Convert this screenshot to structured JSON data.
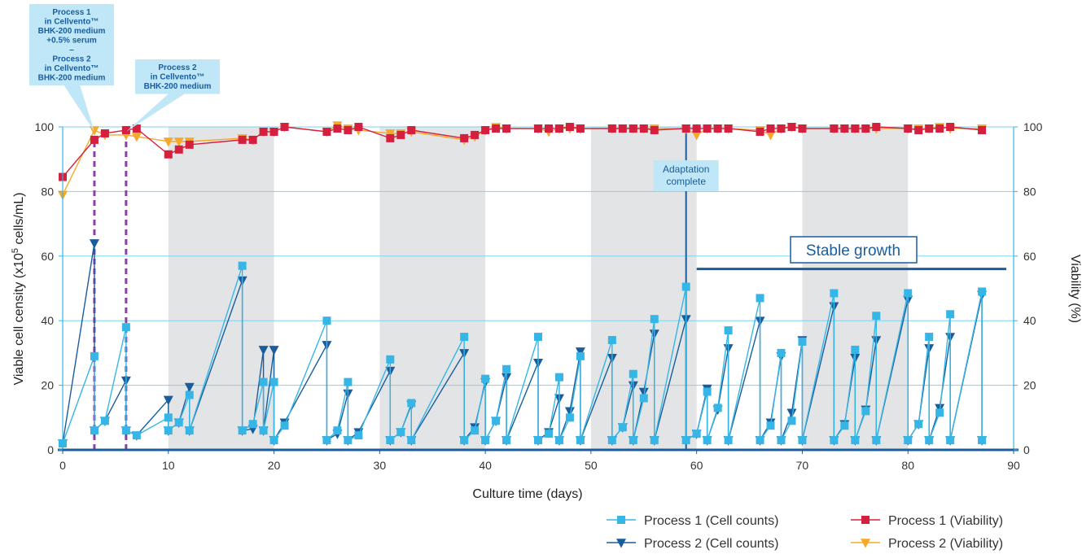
{
  "chart_data": {
    "type": "line",
    "xlabel": "Culture time (days)",
    "ylabel_left": "Viable cell censity (x10",
    "ylabel_left_sup": "5",
    "ylabel_left_suffix": " cells/mL)",
    "ylabel_right": "Viability (%)",
    "xlim": [
      0,
      90
    ],
    "ylim": [
      0,
      100
    ],
    "x_ticks": [
      0,
      10,
      20,
      30,
      40,
      50,
      60,
      70,
      80,
      90
    ],
    "y_ticks": [
      0,
      20,
      40,
      60,
      80,
      100
    ],
    "y2_ticks": [
      0,
      20,
      40,
      60,
      80,
      100
    ],
    "grid": true,
    "legend_position": "bottom-right",
    "shaded_bands": [
      [
        10,
        20
      ],
      [
        30,
        40
      ],
      [
        50,
        60
      ],
      [
        70,
        80
      ]
    ],
    "series": [
      {
        "name": "Process 1 (Cell counts)",
        "color": "#36b6e6",
        "marker": "square",
        "points": [
          [
            0,
            2
          ],
          [
            3,
            29
          ],
          [
            3,
            6
          ],
          [
            4,
            9
          ],
          [
            6,
            38
          ],
          [
            6,
            6
          ],
          [
            7,
            4.5
          ],
          [
            10,
            10
          ],
          [
            10,
            6
          ],
          [
            11,
            8.5
          ],
          [
            12,
            17
          ],
          [
            12,
            6
          ],
          [
            17,
            57
          ],
          [
            17,
            6
          ],
          [
            18,
            8
          ],
          [
            19,
            21
          ],
          [
            19,
            6
          ],
          [
            20,
            21
          ],
          [
            20,
            3
          ],
          [
            21,
            7.5
          ],
          [
            25,
            40
          ],
          [
            25,
            3
          ],
          [
            26,
            6
          ],
          [
            27,
            21
          ],
          [
            27,
            3
          ],
          [
            28,
            4.5
          ],
          [
            31,
            28
          ],
          [
            31,
            3
          ],
          [
            32,
            5.5
          ],
          [
            33,
            14.5
          ],
          [
            33,
            3
          ],
          [
            38,
            35
          ],
          [
            38,
            3
          ],
          [
            39,
            6
          ],
          [
            40,
            22
          ],
          [
            40,
            3
          ],
          [
            41,
            9
          ],
          [
            42,
            25
          ],
          [
            42,
            3
          ],
          [
            45,
            35
          ],
          [
            45,
            3
          ],
          [
            46,
            5
          ],
          [
            47,
            22.5
          ],
          [
            47,
            3
          ],
          [
            48,
            10
          ],
          [
            49,
            29
          ],
          [
            49,
            3
          ],
          [
            52,
            34
          ],
          [
            52,
            3
          ],
          [
            53,
            7
          ],
          [
            54,
            23.5
          ],
          [
            54,
            3
          ],
          [
            55,
            16
          ],
          [
            56,
            40.5
          ],
          [
            56,
            3
          ],
          [
            59,
            50.5
          ],
          [
            59,
            3
          ],
          [
            60,
            5
          ],
          [
            61,
            18
          ],
          [
            61,
            3
          ],
          [
            62,
            13
          ],
          [
            63,
            37
          ],
          [
            63,
            3
          ],
          [
            66,
            47
          ],
          [
            66,
            3
          ],
          [
            67,
            7.5
          ],
          [
            68,
            30
          ],
          [
            68,
            3
          ],
          [
            69,
            9
          ],
          [
            70,
            33.5
          ],
          [
            70,
            3
          ],
          [
            73,
            48.5
          ],
          [
            73,
            3
          ],
          [
            74,
            7.5
          ],
          [
            75,
            31
          ],
          [
            75,
            3
          ],
          [
            76,
            12
          ],
          [
            77,
            41.5
          ],
          [
            77,
            3
          ],
          [
            80,
            48.5
          ],
          [
            80,
            3
          ],
          [
            81,
            8
          ],
          [
            82,
            35
          ],
          [
            82,
            3
          ],
          [
            83,
            11.5
          ],
          [
            84,
            42
          ],
          [
            84,
            3
          ],
          [
            87,
            49
          ],
          [
            87,
            3
          ]
        ]
      },
      {
        "name": "Process 2 (Cell counts)",
        "color": "#1a5d9c",
        "marker": "triangle-down",
        "points": [
          [
            0,
            2
          ],
          [
            3,
            64
          ],
          [
            3,
            6
          ],
          [
            4,
            9
          ],
          [
            6,
            21.5
          ],
          [
            6,
            6
          ],
          [
            7,
            4.5
          ],
          [
            10,
            15.5
          ],
          [
            10,
            6
          ],
          [
            11,
            8.5
          ],
          [
            12,
            19.5
          ],
          [
            12,
            6
          ],
          [
            17,
            52.5
          ],
          [
            17,
            6
          ],
          [
            18,
            6.5
          ],
          [
            19,
            31
          ],
          [
            19,
            6
          ],
          [
            20,
            31
          ],
          [
            20,
            3
          ],
          [
            21,
            8.5
          ],
          [
            25,
            32.5
          ],
          [
            25,
            3
          ],
          [
            26,
            5
          ],
          [
            27,
            17.5
          ],
          [
            27,
            3
          ],
          [
            28,
            5.5
          ],
          [
            31,
            24.5
          ],
          [
            31,
            3
          ],
          [
            32,
            5.5
          ],
          [
            33,
            14
          ],
          [
            33,
            3
          ],
          [
            38,
            30
          ],
          [
            38,
            3
          ],
          [
            39,
            7
          ],
          [
            40,
            21
          ],
          [
            40,
            3
          ],
          [
            41,
            9
          ],
          [
            42,
            22.5
          ],
          [
            42,
            3
          ],
          [
            45,
            27
          ],
          [
            45,
            3
          ],
          [
            46,
            5.5
          ],
          [
            47,
            16
          ],
          [
            47,
            3
          ],
          [
            48,
            12
          ],
          [
            49,
            30.5
          ],
          [
            49,
            3
          ],
          [
            52,
            28.5
          ],
          [
            52,
            3
          ],
          [
            53,
            7
          ],
          [
            54,
            20
          ],
          [
            54,
            3
          ],
          [
            55,
            18
          ],
          [
            56,
            36
          ],
          [
            56,
            3
          ],
          [
            59,
            40.5
          ],
          [
            59,
            3
          ],
          [
            60,
            5
          ],
          [
            61,
            19
          ],
          [
            61,
            3
          ],
          [
            62,
            12.5
          ],
          [
            63,
            31.5
          ],
          [
            63,
            3
          ],
          [
            66,
            40
          ],
          [
            66,
            3
          ],
          [
            67,
            8.5
          ],
          [
            68,
            29
          ],
          [
            68,
            3
          ],
          [
            69,
            11.5
          ],
          [
            70,
            34
          ],
          [
            70,
            3
          ],
          [
            73,
            44.5
          ],
          [
            73,
            3
          ],
          [
            74,
            8
          ],
          [
            75,
            28.5
          ],
          [
            75,
            3
          ],
          [
            76,
            12.5
          ],
          [
            77,
            34
          ],
          [
            77,
            3
          ],
          [
            80,
            46.5
          ],
          [
            80,
            3
          ],
          [
            81,
            8
          ],
          [
            82,
            31.5
          ],
          [
            82,
            3
          ],
          [
            83,
            13
          ],
          [
            84,
            35
          ],
          [
            84,
            3
          ],
          [
            87,
            48
          ],
          [
            87,
            3
          ]
        ]
      },
      {
        "name": "Process 1 (Viability)",
        "color": "#d51f3e",
        "marker": "square",
        "points": [
          [
            0,
            84.5
          ],
          [
            3,
            96
          ],
          [
            4,
            98
          ],
          [
            6,
            99
          ],
          [
            7,
            99.5
          ],
          [
            10,
            91.5
          ],
          [
            11,
            93
          ],
          [
            12,
            94.5
          ],
          [
            17,
            96
          ],
          [
            18,
            96
          ],
          [
            19,
            98.5
          ],
          [
            20,
            98.5
          ],
          [
            21,
            100
          ],
          [
            25,
            98.5
          ],
          [
            26,
            99.5
          ],
          [
            27,
            99
          ],
          [
            28,
            100
          ],
          [
            31,
            96.5
          ],
          [
            32,
            97.5
          ],
          [
            33,
            99
          ],
          [
            38,
            96.5
          ],
          [
            39,
            97.5
          ],
          [
            40,
            99
          ],
          [
            41,
            99.5
          ],
          [
            42,
            99.5
          ],
          [
            45,
            99.5
          ],
          [
            46,
            99.5
          ],
          [
            47,
            99.5
          ],
          [
            48,
            100
          ],
          [
            49,
            99.5
          ],
          [
            52,
            99.5
          ],
          [
            53,
            99.5
          ],
          [
            54,
            99.5
          ],
          [
            55,
            99.5
          ],
          [
            56,
            99
          ],
          [
            59,
            99.5
          ],
          [
            60,
            99.5
          ],
          [
            61,
            99.5
          ],
          [
            62,
            99.5
          ],
          [
            63,
            99.5
          ],
          [
            66,
            98.5
          ],
          [
            67,
            99.5
          ],
          [
            68,
            99.5
          ],
          [
            69,
            100
          ],
          [
            70,
            99.5
          ],
          [
            73,
            99.5
          ],
          [
            74,
            99.5
          ],
          [
            75,
            99.5
          ],
          [
            76,
            99.5
          ],
          [
            77,
            100
          ],
          [
            80,
            99.5
          ],
          [
            81,
            99
          ],
          [
            82,
            99.5
          ],
          [
            83,
            99.5
          ],
          [
            84,
            100
          ],
          [
            87,
            99
          ]
        ]
      },
      {
        "name": "Process 2 (Viability)",
        "color": "#f5a82a",
        "marker": "triangle-down",
        "points": [
          [
            0,
            79
          ],
          [
            3,
            99
          ],
          [
            4,
            97.5
          ],
          [
            6,
            97.5
          ],
          [
            7,
            97
          ],
          [
            10,
            95.5
          ],
          [
            11,
            95.5
          ],
          [
            12,
            95.5
          ],
          [
            17,
            96.5
          ],
          [
            18,
            96
          ],
          [
            19,
            98.5
          ],
          [
            20,
            98.5
          ],
          [
            21,
            100
          ],
          [
            25,
            98.5
          ],
          [
            26,
            100.5
          ],
          [
            27,
            99.5
          ],
          [
            28,
            99
          ],
          [
            31,
            98
          ],
          [
            32,
            98
          ],
          [
            33,
            98.5
          ],
          [
            38,
            96
          ],
          [
            39,
            97
          ],
          [
            40,
            99
          ],
          [
            41,
            100
          ],
          [
            42,
            99.5
          ],
          [
            45,
            99.5
          ],
          [
            46,
            98.5
          ],
          [
            47,
            99.5
          ],
          [
            48,
            99.5
          ],
          [
            49,
            99.5
          ],
          [
            52,
            99.5
          ],
          [
            53,
            99.5
          ],
          [
            54,
            99.5
          ],
          [
            55,
            99.5
          ],
          [
            56,
            99.5
          ],
          [
            59,
            99.5
          ],
          [
            60,
            97.5
          ],
          [
            61,
            99.5
          ],
          [
            62,
            99.5
          ],
          [
            63,
            99.5
          ],
          [
            66,
            99
          ],
          [
            67,
            97.5
          ],
          [
            68,
            99.5
          ],
          [
            69,
            100
          ],
          [
            70,
            99.5
          ],
          [
            73,
            99.5
          ],
          [
            74,
            99.5
          ],
          [
            75,
            99.5
          ],
          [
            76,
            99.5
          ],
          [
            77,
            99.5
          ],
          [
            80,
            99.5
          ],
          [
            81,
            99.5
          ],
          [
            82,
            99.5
          ],
          [
            83,
            100
          ],
          [
            84,
            99.5
          ],
          [
            87,
            99.5
          ]
        ]
      }
    ],
    "vertical_markers": [
      {
        "x": 3,
        "y": 97,
        "color": "#8b3fa7",
        "style": "dashed"
      },
      {
        "x": 6,
        "y": 97,
        "color": "#8b3fa7",
        "style": "dashed"
      },
      {
        "x": 59,
        "y": 100,
        "color": "#1a5d9c",
        "style": "solid"
      }
    ],
    "annotations": [
      {
        "kind": "callout",
        "lines": [
          "Process 1",
          "in Cellvento™",
          "BHK-200 medium",
          "+0.5% serum",
          "–",
          "Process 2",
          "in Cellvento™",
          "BHK-200 medium"
        ],
        "target_x": 3,
        "target_y": 97
      },
      {
        "kind": "callout",
        "lines": [
          "Process 2",
          "in Cellvento™",
          "BHK-200 medium"
        ],
        "target_x": 6,
        "target_y": 97
      },
      {
        "kind": "label",
        "lines": [
          "Adaptation",
          "complete"
        ]
      },
      {
        "kind": "bracket",
        "text": "Stable growth",
        "x_start": 60,
        "x_end": 90,
        "y": 56
      }
    ]
  }
}
